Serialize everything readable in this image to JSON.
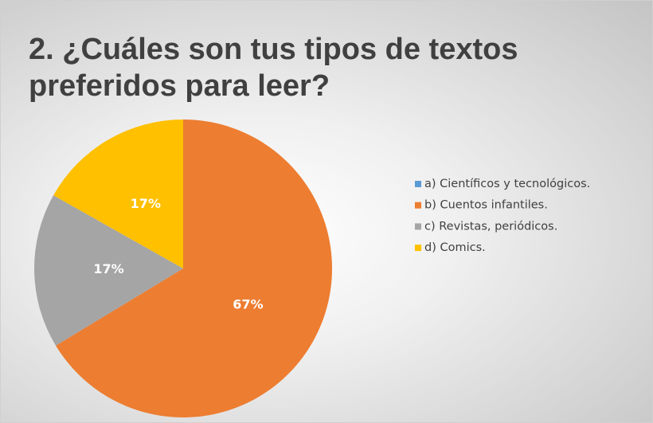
{
  "chart_data": {
    "type": "pie",
    "title": "2. ¿Cuáles son tus tipos de textos preferidos para leer?",
    "categories": [
      "a) Científicos y tecnológicos.",
      "b) Cuentos infantiles.",
      "c) Revistas, periódicos.",
      "d) Comics."
    ],
    "values": [
      0,
      67,
      17,
      17
    ],
    "value_labels": [
      null,
      "67%",
      "17%",
      "17%"
    ],
    "colors": [
      "#5b9bd5",
      "#ed7d31",
      "#a5a5a5",
      "#ffc000"
    ],
    "legend": "right"
  }
}
